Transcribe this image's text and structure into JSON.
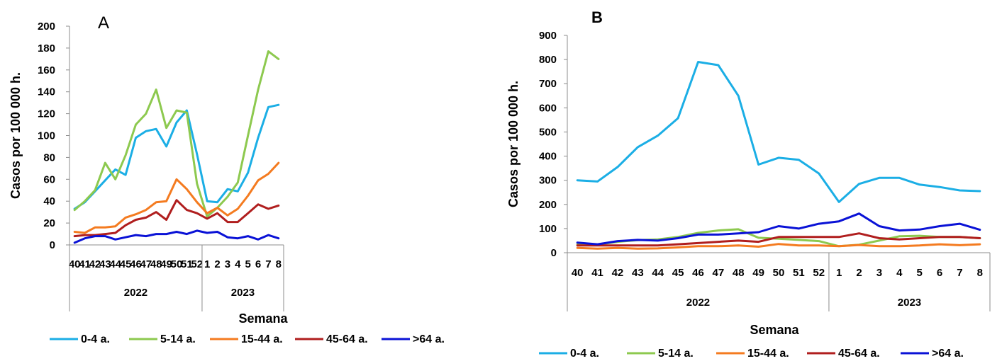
{
  "colors": {
    "0-4 a.": "#1BAEE5",
    "5-14 a.": "#8DC94F",
    "15-44 a.": "#F47B20",
    "45-64 a.": "#B01E1E",
    ">64 a.": "#0A12D6"
  },
  "chart_data": [
    {
      "type": "line",
      "panel_label": "A",
      "title": "",
      "xlabel": "Semana",
      "ylabel": "Casos por 100 000 h.",
      "ylim": [
        0,
        200
      ],
      "yticks": [
        0,
        20,
        40,
        60,
        80,
        100,
        120,
        140,
        160,
        180,
        200
      ],
      "categories": [
        "40",
        "41",
        "42",
        "43",
        "44",
        "45",
        "46",
        "47",
        "48",
        "49",
        "50",
        "51",
        "52",
        "1",
        "2",
        "3",
        "4",
        "5",
        "6",
        "7",
        "8"
      ],
      "year_groups": [
        {
          "label": "2022",
          "count": 13
        },
        {
          "label": "2023",
          "count": 8
        }
      ],
      "legend_position": "bottom",
      "series": [
        {
          "name": "0-4 a.",
          "values": [
            33,
            39,
            49,
            59,
            69,
            64,
            98,
            104,
            106,
            90,
            112,
            123,
            83,
            40,
            39,
            51,
            49,
            66,
            98,
            126,
            128
          ]
        },
        {
          "name": "5-14 a.",
          "values": [
            32,
            40,
            50,
            75,
            60,
            82,
            110,
            120,
            142,
            107,
            123,
            121,
            56,
            26,
            34,
            44,
            57,
            100,
            142,
            177,
            170
          ]
        },
        {
          "name": "15-44 a.",
          "values": [
            12,
            11,
            16,
            16,
            17,
            25,
            28,
            32,
            39,
            40,
            60,
            51,
            39,
            29,
            34,
            27,
            33,
            45,
            59,
            65,
            75
          ]
        },
        {
          "name": "45-64 a.",
          "values": [
            8,
            9,
            9,
            10,
            11,
            18,
            23,
            25,
            30,
            23,
            41,
            32,
            29,
            24,
            29,
            21,
            21,
            29,
            37,
            33,
            36
          ]
        },
        {
          "name": ">64 a.",
          "values": [
            2,
            6,
            8,
            8,
            5,
            7,
            9,
            8,
            10,
            10,
            12,
            10,
            13,
            11,
            12,
            7,
            6,
            8,
            5,
            9,
            6
          ]
        }
      ]
    },
    {
      "type": "line",
      "panel_label": "B",
      "title": "",
      "xlabel": "Semana",
      "ylabel": "Casos por 100 000 h.",
      "ylim": [
        0,
        900
      ],
      "yticks": [
        0,
        100,
        200,
        300,
        400,
        500,
        600,
        700,
        800,
        900
      ],
      "categories": [
        "40",
        "41",
        "42",
        "43",
        "44",
        "45",
        "46",
        "47",
        "48",
        "49",
        "50",
        "51",
        "52",
        "1",
        "2",
        "3",
        "4",
        "5",
        "6",
        "7",
        "8"
      ],
      "year_groups": [
        {
          "label": "2022",
          "count": 13
        },
        {
          "label": "2023",
          "count": 8
        }
      ],
      "legend_position": "bottom",
      "series": [
        {
          "name": "0-4 a.",
          "values": [
            300,
            295,
            355,
            437,
            485,
            557,
            790,
            777,
            650,
            365,
            393,
            385,
            328,
            210,
            285,
            310,
            310,
            282,
            272,
            258,
            255
          ]
        },
        {
          "name": "5-14 a.",
          "values": [
            35,
            33,
            45,
            52,
            55,
            65,
            82,
            92,
            97,
            62,
            58,
            53,
            48,
            27,
            33,
            50,
            68,
            70,
            65,
            65,
            60
          ]
        },
        {
          "name": "15-44 a.",
          "values": [
            20,
            17,
            20,
            17,
            18,
            22,
            27,
            27,
            30,
            25,
            36,
            30,
            30,
            27,
            32,
            27,
            27,
            30,
            35,
            31,
            35
          ]
        },
        {
          "name": "45-64 a.",
          "values": [
            30,
            30,
            30,
            30,
            30,
            35,
            40,
            45,
            50,
            45,
            65,
            65,
            65,
            65,
            80,
            60,
            55,
            60,
            65,
            65,
            60
          ]
        },
        {
          "name": ">64 a.",
          "values": [
            42,
            35,
            48,
            53,
            50,
            60,
            75,
            75,
            80,
            85,
            110,
            100,
            120,
            130,
            162,
            110,
            92,
            96,
            110,
            120,
            95
          ]
        }
      ]
    }
  ]
}
